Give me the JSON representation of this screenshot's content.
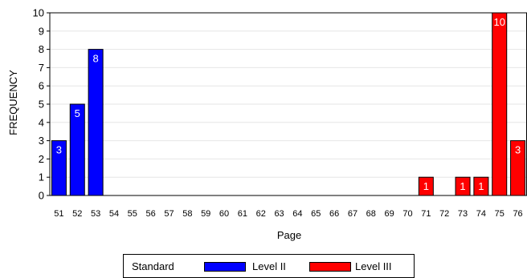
{
  "chart_data": {
    "type": "bar",
    "categories": [
      "51",
      "52",
      "53",
      "54",
      "55",
      "56",
      "57",
      "58",
      "59",
      "60",
      "61",
      "62",
      "63",
      "64",
      "65",
      "66",
      "67",
      "68",
      "69",
      "70",
      "71",
      "72",
      "73",
      "74",
      "75",
      "76"
    ],
    "series": [
      {
        "name": "Level II",
        "color": "#0000ff",
        "values": [
          3,
          5,
          8,
          0,
          0,
          0,
          0,
          0,
          0,
          0,
          0,
          0,
          0,
          0,
          0,
          0,
          0,
          0,
          0,
          0,
          0,
          0,
          0,
          0,
          0,
          0
        ]
      },
      {
        "name": "Level III",
        "color": "#ff0000",
        "values": [
          0,
          0,
          0,
          0,
          0,
          0,
          0,
          0,
          0,
          0,
          0,
          0,
          0,
          0,
          0,
          0,
          0,
          0,
          0,
          0,
          1,
          0,
          1,
          1,
          10,
          3
        ]
      }
    ],
    "xlabel": "Page",
    "ylabel": "FREQUENCY",
    "ylim": [
      0,
      10
    ],
    "yticks": [
      0,
      1,
      2,
      3,
      4,
      5,
      6,
      7,
      8,
      9,
      10
    ],
    "grid": true,
    "legend": {
      "title": "Standard",
      "placement": "bottom"
    }
  }
}
